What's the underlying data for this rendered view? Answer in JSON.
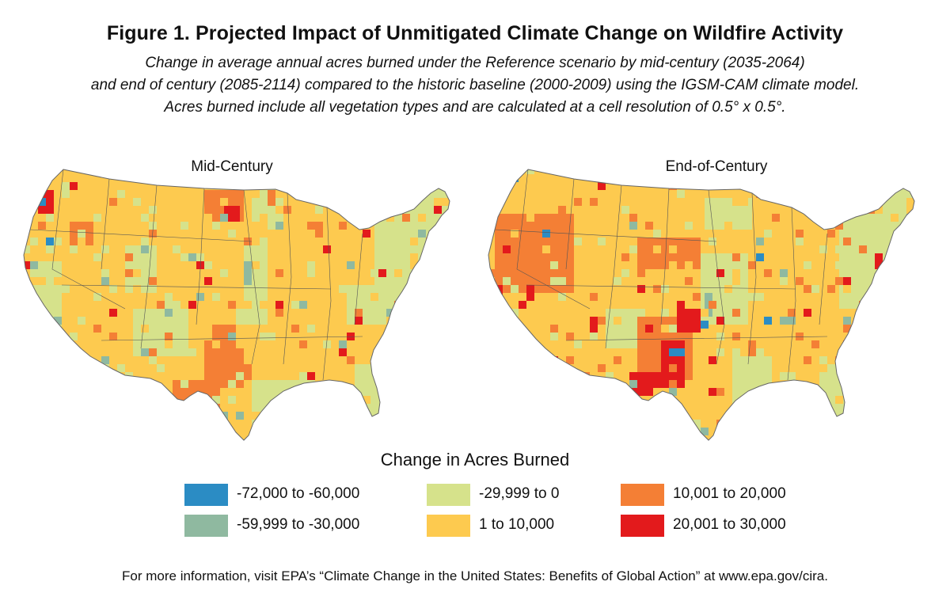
{
  "figure": {
    "title": "Figure 1. Projected Impact of Unmitigated Climate Change on Wildfire Activity",
    "subtitle_lines": [
      "Change in average annual acres burned under the Reference scenario by mid-century (2035-2064)",
      "and end of century (2085-2114) compared to the historic baseline (2000-2009) using the IGSM-CAM climate model.",
      "Acres burned include all vegetation types and are calculated at a cell resolution of 0.5° x 0.5°."
    ]
  },
  "maps": {
    "mid_century": {
      "label": "Mid-Century"
    },
    "end_of_century": {
      "label": "End-of-Century"
    }
  },
  "legend": {
    "title": "Change in Acres Burned",
    "items": [
      {
        "label": "-72,000 to -60,000",
        "color": "#2b8cc4"
      },
      {
        "label": "-59,999 to -30,000",
        "color": "#8fb9a0"
      },
      {
        "label": "-29,999 to 0",
        "color": "#d6e28b"
      },
      {
        "label": "1 to 10,000",
        "color": "#fdca4f"
      },
      {
        "label": "10,001 to 20,000",
        "color": "#f47f35"
      },
      {
        "label": "20,001 to 30,000",
        "color": "#e31a1c"
      }
    ]
  },
  "footer": "For more information, visit EPA’s “Climate Change in the United States: Benefits of Global Action” at www.epa.gov/cira."
}
